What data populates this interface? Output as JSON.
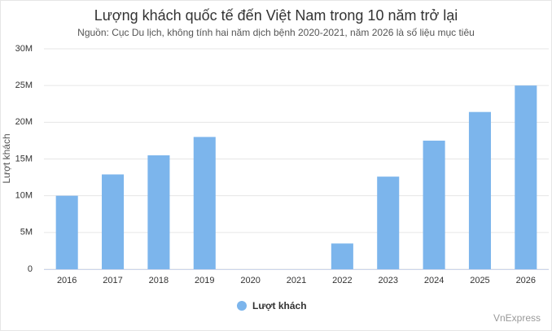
{
  "chart_data": {
    "type": "bar",
    "title": "Lượng khách quốc tế đến Việt Nam trong 10 năm trở lại",
    "subtitle": "Nguồn: Cục Du lịch, không tính hai năm dịch bệnh 2020-2021, năm 2026 là số liệu mục tiêu",
    "y_label": "Lượt khách",
    "categories": [
      "2016",
      "2017",
      "2018",
      "2019",
      "2020",
      "2021",
      "2022",
      "2023",
      "2024",
      "2025",
      "2026"
    ],
    "series": [
      {
        "name": "Lượt khách",
        "color": "#7cb5ec",
        "values": [
          10,
          12.9,
          15.5,
          18,
          null,
          null,
          3.5,
          12.6,
          17.5,
          21.4,
          25
        ]
      }
    ],
    "ylim": [
      0,
      30
    ],
    "yticks": [
      0,
      {
        "value": 5,
        "label": "5M"
      },
      {
        "value": 10,
        "label": "10M"
      },
      {
        "value": 15,
        "label": "15M"
      },
      {
        "value": 20,
        "label": "20M"
      },
      {
        "value": 25,
        "label": "25M"
      },
      {
        "value": 30,
        "label": "30M"
      }
    ],
    "grid": true,
    "legend": "bottom",
    "credit": "VnExpress"
  }
}
